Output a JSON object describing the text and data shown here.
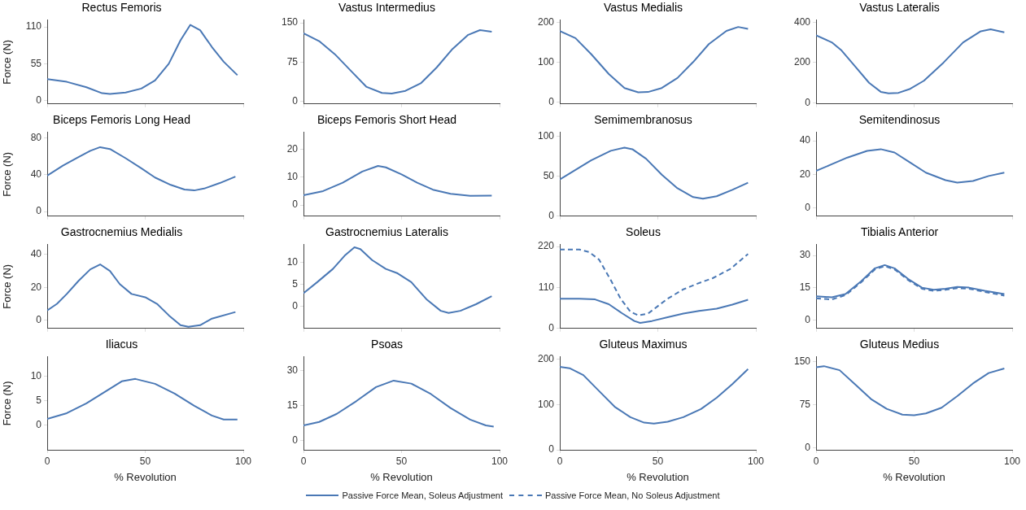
{
  "chart_data": [
    {
      "type": "line",
      "title": "Rectus Femoris",
      "ylabel": "Force (N)",
      "xlim": [
        0,
        100
      ],
      "xticks": [
        0,
        50,
        100
      ],
      "ylim": [
        -5,
        120
      ],
      "yticks": [
        0,
        55,
        110
      ],
      "tick_labels": "y",
      "series": [
        {
          "color": "#4a78b5",
          "x": [
            0,
            10,
            20,
            28,
            32,
            40,
            48,
            55,
            62,
            68,
            73,
            78,
            84,
            90,
            97
          ],
          "values": [
            32,
            28,
            20,
            11,
            10,
            12,
            18,
            30,
            55,
            90,
            113,
            105,
            80,
            58,
            38
          ]
        }
      ]
    },
    {
      "type": "line",
      "title": "Vastus Intermedius",
      "xlim": [
        0,
        100
      ],
      "xticks": [
        0,
        50,
        100
      ],
      "ylim": [
        -5,
        155
      ],
      "yticks": [
        0,
        75,
        150
      ],
      "tick_labels": "y",
      "series": [
        {
          "color": "#4a78b5",
          "x": [
            0,
            8,
            16,
            25,
            32,
            40,
            45,
            52,
            60,
            68,
            76,
            84,
            90,
            96
          ],
          "values": [
            130,
            115,
            90,
            55,
            28,
            16,
            15,
            20,
            35,
            65,
            100,
            127,
            136,
            133
          ]
        }
      ]
    },
    {
      "type": "line",
      "title": "Vastus Medialis",
      "xlim": [
        0,
        100
      ],
      "xticks": [
        0,
        50,
        100
      ],
      "ylim": [
        -5,
        205
      ],
      "yticks": [
        0,
        100,
        200
      ],
      "tick_labels": "y",
      "series": [
        {
          "color": "#4a78b5",
          "x": [
            0,
            8,
            16,
            25,
            33,
            40,
            45,
            52,
            60,
            68,
            76,
            85,
            91,
            96
          ],
          "values": [
            178,
            160,
            120,
            70,
            35,
            24,
            25,
            35,
            60,
            100,
            145,
            178,
            188,
            183
          ]
        }
      ]
    },
    {
      "type": "line",
      "title": "Vastus Lateralis",
      "xlim": [
        0,
        100
      ],
      "xticks": [
        0,
        50,
        100
      ],
      "ylim": [
        -5,
        410
      ],
      "yticks": [
        0,
        200,
        400
      ],
      "tick_labels": "y",
      "series": [
        {
          "color": "#4a78b5",
          "x": [
            0,
            8,
            13,
            20,
            27,
            33,
            37,
            42,
            48,
            55,
            65,
            75,
            84,
            89,
            96
          ],
          "values": [
            335,
            300,
            260,
            180,
            100,
            55,
            48,
            50,
            70,
            110,
            200,
            300,
            355,
            365,
            350
          ]
        }
      ]
    },
    {
      "type": "line",
      "title": "Biceps Femoris Long Head",
      "ylabel": "Force (N)",
      "xlim": [
        0,
        100
      ],
      "xticks": [
        0,
        50,
        100
      ],
      "ylim": [
        -5,
        86
      ],
      "yticks": [
        0,
        40,
        80
      ],
      "tick_labels": "y",
      "series": [
        {
          "color": "#4a78b5",
          "x": [
            0,
            8,
            15,
            22,
            27,
            32,
            40,
            48,
            55,
            63,
            70,
            75,
            80,
            88,
            96
          ],
          "values": [
            39,
            50,
            58,
            66,
            70,
            68,
            58,
            47,
            37,
            29,
            24,
            23,
            25,
            31,
            38
          ]
        }
      ]
    },
    {
      "type": "line",
      "title": "Biceps Femoris Short Head",
      "xlim": [
        0,
        100
      ],
      "xticks": [
        0,
        50,
        100
      ],
      "ylim": [
        -4,
        26
      ],
      "yticks": [
        0,
        10,
        20
      ],
      "tick_labels": "y",
      "series": [
        {
          "color": "#4a78b5",
          "x": [
            0,
            10,
            20,
            30,
            38,
            42,
            50,
            58,
            66,
            75,
            85,
            96
          ],
          "values": [
            3.5,
            5,
            8,
            12,
            14,
            13.5,
            11,
            8,
            5.5,
            4,
            3.3,
            3.4
          ]
        }
      ]
    },
    {
      "type": "line",
      "title": "Semimembranosus",
      "xlim": [
        0,
        100
      ],
      "xticks": [
        0,
        50,
        100
      ],
      "ylim": [
        0,
        105
      ],
      "yticks": [
        0,
        50,
        100
      ],
      "tick_labels": "y",
      "series": [
        {
          "color": "#4a78b5",
          "x": [
            0,
            8,
            16,
            26,
            33,
            37,
            44,
            52,
            60,
            68,
            73,
            80,
            88,
            96
          ],
          "values": [
            46,
            58,
            70,
            82,
            86,
            84,
            72,
            52,
            35,
            24,
            22,
            25,
            33,
            42
          ]
        }
      ]
    },
    {
      "type": "line",
      "title": "Semitendinosus",
      "xlim": [
        0,
        100
      ],
      "xticks": [
        0,
        50,
        100
      ],
      "ylim": [
        -5,
        45
      ],
      "yticks": [
        0,
        20,
        40
      ],
      "tick_labels": "y",
      "series": [
        {
          "color": "#4a78b5",
          "x": [
            0,
            8,
            16,
            26,
            33,
            40,
            48,
            56,
            66,
            72,
            80,
            88,
            96
          ],
          "values": [
            22,
            26,
            30,
            34,
            35,
            33,
            27,
            21,
            16.5,
            15,
            16,
            19,
            21
          ]
        }
      ]
    },
    {
      "type": "line",
      "title": "Gastrocnemius Medialis",
      "ylabel": "Force (N)",
      "xlim": [
        0,
        100
      ],
      "xticks": [
        0,
        50,
        100
      ],
      "ylim": [
        -5,
        46
      ],
      "yticks": [
        0,
        20,
        40
      ],
      "tick_labels": "y",
      "series": [
        {
          "color": "#4a78b5",
          "x": [
            0,
            5,
            10,
            16,
            22,
            27,
            32,
            37,
            43,
            50,
            56,
            62,
            68,
            72,
            78,
            84,
            96
          ],
          "values": [
            6,
            10,
            16,
            24,
            31,
            34,
            30,
            22,
            16,
            14,
            10,
            3,
            -3,
            -4,
            -3,
            1,
            5
          ]
        }
      ]
    },
    {
      "type": "line",
      "title": "Gastrocnemius Lateralis",
      "xlim": [
        0,
        100
      ],
      "xticks": [
        0,
        50,
        100
      ],
      "ylim": [
        -5,
        14
      ],
      "yticks": [
        0,
        5,
        10
      ],
      "tick_labels": "y",
      "series": [
        {
          "color": "#4a78b5",
          "x": [
            0,
            7,
            15,
            21,
            26,
            29,
            35,
            42,
            48,
            55,
            63,
            70,
            74,
            80,
            88,
            96
          ],
          "values": [
            3,
            5.5,
            8.5,
            11.5,
            13.4,
            13,
            10.5,
            8.5,
            7.5,
            5.5,
            1.5,
            -1,
            -1.5,
            -1,
            0.5,
            2.3
          ]
        }
      ]
    },
    {
      "type": "line",
      "title": "Soleus",
      "xlim": [
        0,
        100
      ],
      "xticks": [
        0,
        50,
        100
      ],
      "ylim": [
        0,
        225
      ],
      "yticks": [
        0,
        110,
        220
      ],
      "tick_labels": "y",
      "legend": "bottom",
      "series": [
        {
          "name": "Passive Force Mean, Soleus Adjustment",
          "color": "#4a78b5",
          "line_style": "solid",
          "x": [
            0,
            10,
            18,
            25,
            32,
            38,
            41,
            47,
            55,
            63,
            71,
            80,
            88,
            96
          ],
          "values": [
            80,
            80,
            78,
            65,
            40,
            20,
            15,
            20,
            30,
            40,
            47,
            53,
            64,
            77
          ]
        },
        {
          "name": "Passive Force Mean, No Soleus Adjustment",
          "color": "#4a78b5",
          "line_style": "dashed",
          "x": [
            0,
            10,
            15,
            20,
            26,
            31,
            36,
            40,
            45,
            50,
            55,
            63,
            70,
            78,
            87,
            96
          ],
          "values": [
            212,
            212,
            205,
            185,
            130,
            80,
            45,
            35,
            40,
            60,
            80,
            105,
            120,
            135,
            160,
            200
          ]
        }
      ]
    },
    {
      "type": "line",
      "title": "Tibialis Anterior",
      "xlim": [
        0,
        100
      ],
      "xticks": [
        0,
        50,
        100
      ],
      "ylim": [
        -4,
        35
      ],
      "yticks": [
        0,
        15,
        30
      ],
      "tick_labels": "y",
      "series": [
        {
          "color": "#4a78b5",
          "line_style": "solid",
          "x": [
            0,
            8,
            15,
            23,
            30,
            35,
            40,
            47,
            54,
            60,
            66,
            72,
            78,
            86,
            96
          ],
          "values": [
            11,
            10.5,
            12,
            18,
            24,
            25.5,
            24,
            19,
            15,
            14,
            14.5,
            15.3,
            15,
            13.5,
            12
          ]
        },
        {
          "color": "#4a78b5",
          "line_style": "dashed",
          "x": [
            0,
            8,
            15,
            23,
            30,
            35,
            40,
            47,
            54,
            60,
            66,
            72,
            78,
            86,
            96
          ],
          "values": [
            10,
            9.5,
            11.5,
            17.5,
            23.5,
            25,
            23.5,
            18.5,
            14.5,
            13.5,
            14,
            14.8,
            14.5,
            13,
            11.3
          ]
        }
      ]
    },
    {
      "type": "line",
      "title": "Iliacus",
      "ylabel": "Force (N)",
      "xlabel": "% Revolution",
      "xlim": [
        0,
        100
      ],
      "xticks": [
        0,
        50,
        100
      ],
      "ylim": [
        -5,
        14
      ],
      "yticks": [
        0,
        5,
        10
      ],
      "series": [
        {
          "color": "#4a78b5",
          "x": [
            0,
            10,
            20,
            30,
            38,
            45,
            55,
            65,
            75,
            84,
            90,
            97
          ],
          "values": [
            1.3,
            2.5,
            4.5,
            7,
            9,
            9.5,
            8.5,
            6.5,
            4,
            2,
            1.2,
            1.2
          ]
        }
      ]
    },
    {
      "type": "line",
      "title": "Psoas",
      "xlabel": "% Revolution",
      "xlim": [
        0,
        100
      ],
      "xticks": [
        0,
        50,
        100
      ],
      "ylim": [
        -4,
        36
      ],
      "yticks": [
        0,
        15,
        30
      ],
      "series": [
        {
          "color": "#4a78b5",
          "x": [
            0,
            8,
            17,
            27,
            37,
            46,
            55,
            65,
            75,
            85,
            93,
            97
          ],
          "values": [
            6.5,
            8,
            11.5,
            17,
            23,
            25.8,
            24.5,
            20,
            14,
            9,
            6.5,
            6
          ]
        }
      ]
    },
    {
      "type": "line",
      "title": "Gluteus Maximus",
      "xlabel": "% Revolution",
      "xlim": [
        0,
        100
      ],
      "xticks": [
        0,
        50,
        100
      ],
      "ylim": [
        0,
        205
      ],
      "yticks": [
        0,
        100,
        200
      ],
      "series": [
        {
          "color": "#4a78b5",
          "x": [
            0,
            5,
            12,
            20,
            28,
            36,
            43,
            48,
            55,
            63,
            72,
            80,
            88,
            96
          ],
          "values": [
            183,
            180,
            165,
            130,
            95,
            72,
            60,
            58,
            62,
            72,
            90,
            115,
            145,
            178
          ]
        }
      ]
    },
    {
      "type": "line",
      "title": "Gluteus Medius",
      "xlabel": "% Revolution",
      "xlim": [
        0,
        100
      ],
      "xticks": [
        0,
        50,
        100
      ],
      "ylim": [
        -3,
        158
      ],
      "yticks": [
        0,
        75,
        150
      ],
      "series": [
        {
          "color": "#4a78b5",
          "x": [
            0,
            4,
            12,
            20,
            28,
            36,
            44,
            50,
            56,
            64,
            72,
            80,
            88,
            96
          ],
          "values": [
            140,
            142,
            135,
            110,
            85,
            68,
            58,
            57,
            60,
            70,
            90,
            112,
            130,
            138
          ]
        }
      ]
    }
  ]
}
